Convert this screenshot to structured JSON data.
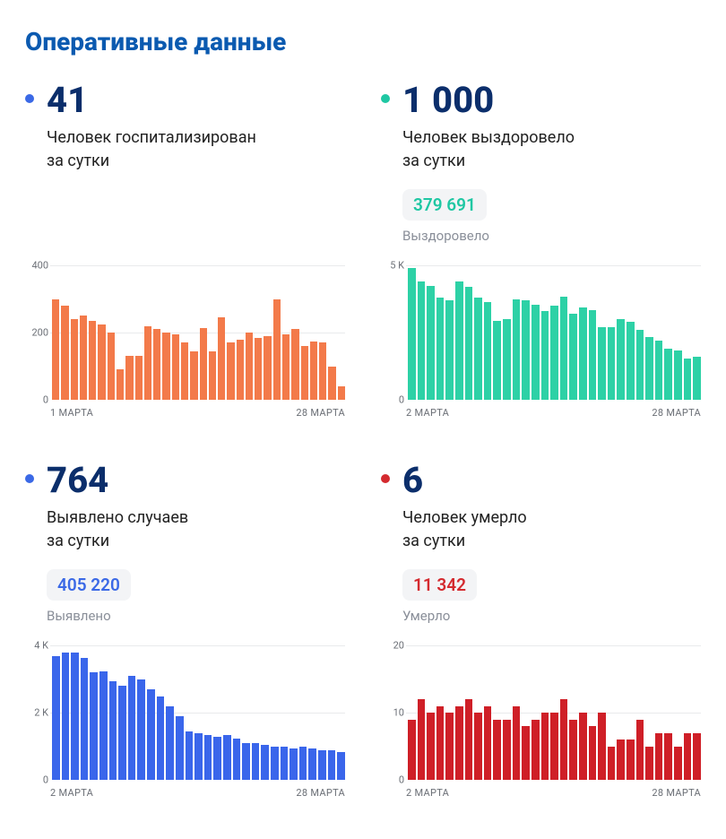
{
  "title": "Оперативные данные",
  "background_color": "#ffffff",
  "grid_color": "#e9eaec",
  "cards": [
    {
      "color": "#3b69e6",
      "bar_color": "#f37a4a",
      "big": "41",
      "line1": "Человек госпитализирован",
      "line2": "за сутки",
      "badge": null,
      "badge_sub": null,
      "chart": {
        "type": "bar",
        "ymax": 400,
        "yticks": [
          0,
          200,
          400
        ],
        "ylabels": [
          "0",
          "200",
          "400"
        ],
        "x_start": "1 МАРТА",
        "x_end": "28 МАРТА",
        "values": [
          300,
          280,
          240,
          250,
          235,
          225,
          200,
          90,
          130,
          130,
          220,
          210,
          200,
          195,
          170,
          145,
          215,
          145,
          245,
          170,
          180,
          200,
          185,
          190,
          300,
          195,
          210,
          160,
          175,
          170,
          100,
          40
        ]
      }
    },
    {
      "color": "#1fc7a3",
      "bar_color": "#2dd1a6",
      "big": "1 000",
      "line1": "Человек выздоровело",
      "line2": "за сутки",
      "badge": "379 691",
      "badge_sub": "Выздоровело",
      "chart": {
        "type": "bar",
        "ymax": 5000,
        "yticks": [
          0,
          5000
        ],
        "ylabels": [
          "0",
          "5 K"
        ],
        "x_start": "2 МАРТА",
        "x_end": "28 МАРТА",
        "values": [
          4900,
          4400,
          4250,
          3800,
          3700,
          4400,
          4200,
          3800,
          3650,
          2950,
          3000,
          3750,
          3700,
          3550,
          3300,
          3500,
          3850,
          3200,
          3450,
          3350,
          2700,
          2700,
          3000,
          2900,
          2600,
          2350,
          2200,
          1900,
          1850,
          1550,
          1600
        ]
      }
    },
    {
      "color": "#3b69e6",
      "bar_color": "#3a66eb",
      "big": "764",
      "line1": "Выявлено случаев",
      "line2": "за сутки",
      "badge": "405 220",
      "badge_sub": "Выявлено",
      "chart": {
        "type": "bar",
        "ymax": 4000,
        "yticks": [
          0,
          2000,
          4000
        ],
        "ylabels": [
          "0",
          "2 K",
          "4 K"
        ],
        "x_start": "2 МАРТА",
        "x_end": "28 МАРТА",
        "values": [
          3700,
          3800,
          3800,
          3650,
          3200,
          3250,
          2950,
          2800,
          3100,
          3000,
          2700,
          2500,
          2200,
          1900,
          1450,
          1400,
          1350,
          1300,
          1350,
          1250,
          1100,
          1100,
          1050,
          1000,
          1000,
          950,
          1000,
          950,
          900,
          900,
          850
        ]
      }
    },
    {
      "color": "#d42a2f",
      "bar_color": "#cf1f27",
      "big": "6",
      "line1": "Человек умерло",
      "line2": "за сутки",
      "badge": "11 342",
      "badge_sub": "Умерло",
      "chart": {
        "type": "bar",
        "ymax": 20,
        "yticks": [
          0,
          10,
          20
        ],
        "ylabels": [
          "0",
          "10",
          "20"
        ],
        "x_start": "2 МАРТА",
        "x_end": "28 МАРТА",
        "values": [
          9,
          12,
          10,
          11,
          10,
          11,
          12,
          10,
          11,
          9,
          9,
          11,
          8,
          9,
          10,
          10,
          12,
          9,
          10,
          8,
          10,
          5,
          6,
          6,
          9,
          5,
          7,
          7,
          5,
          7,
          7
        ]
      }
    }
  ]
}
